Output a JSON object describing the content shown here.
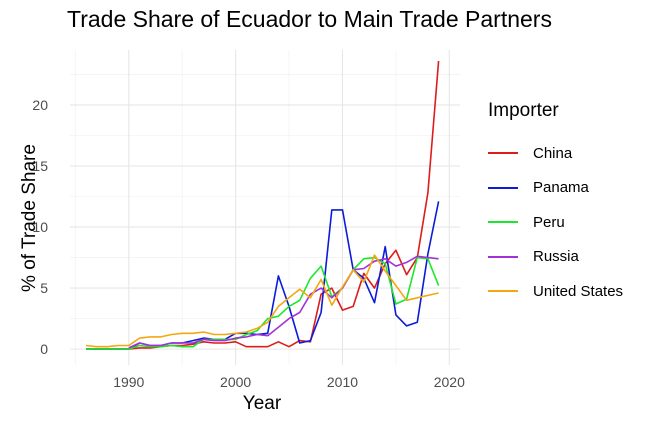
{
  "chart_data": {
    "type": "line",
    "title": "Trade Share of Ecuador to Main Trade Partners",
    "xlabel": "Year",
    "ylabel": "% of Trade Share",
    "xlim": [
      1984.5,
      2021
    ],
    "ylim": [
      -1.3,
      24.5
    ],
    "xticks": [
      1990,
      2000,
      2010,
      2020
    ],
    "yticks": [
      0,
      5,
      10,
      15,
      20
    ],
    "grid": true,
    "legend": {
      "title": "Importer",
      "position": "right"
    },
    "series": [
      {
        "name": "China",
        "color": "#dd1c1c",
        "x": [
          1986,
          1987,
          1988,
          1989,
          1990,
          1991,
          1992,
          1993,
          1994,
          1995,
          1996,
          1997,
          1998,
          1999,
          2000,
          2001,
          2002,
          2003,
          2004,
          2005,
          2006,
          2007,
          2008,
          2009,
          2010,
          2011,
          2012,
          2013,
          2014,
          2015,
          2016,
          2017,
          2018,
          2019
        ],
        "y": [
          0,
          0,
          0,
          0,
          0,
          0.1,
          0.1,
          0.2,
          0.3,
          0.3,
          0.4,
          0.6,
          0.5,
          0.5,
          0.6,
          0.2,
          0.2,
          0.2,
          0.6,
          0.2,
          0.7,
          0.6,
          4.5,
          5.0,
          3.2,
          3.5,
          6.2,
          5.0,
          7.0,
          8.1,
          6.1,
          7.5,
          12.8,
          23.6
        ]
      },
      {
        "name": "Panama",
        "color": "#0a1cd8",
        "x": [
          1986,
          1987,
          1988,
          1989,
          1990,
          1991,
          1992,
          1993,
          1994,
          1995,
          1996,
          1997,
          1998,
          1999,
          2000,
          2001,
          2002,
          2003,
          2004,
          2005,
          2006,
          2007,
          2008,
          2009,
          2010,
          2011,
          2012,
          2013,
          2014,
          2015,
          2016,
          2017,
          2018,
          2019
        ],
        "y": [
          0,
          0,
          0,
          0,
          0,
          0.5,
          0.3,
          0.3,
          0.5,
          0.5,
          0.7,
          0.9,
          0.8,
          0.8,
          1.3,
          1.3,
          1.2,
          1.3,
          6.0,
          3.5,
          0.5,
          0.7,
          3.0,
          11.4,
          11.4,
          6.5,
          5.8,
          3.8,
          8.4,
          2.8,
          1.9,
          2.2,
          7.8,
          12.1
        ]
      },
      {
        "name": "Peru",
        "color": "#1ee62c",
        "x": [
          1986,
          1987,
          1988,
          1989,
          1990,
          1991,
          1992,
          1993,
          1994,
          1995,
          1996,
          1997,
          1998,
          1999,
          2000,
          2001,
          2002,
          2003,
          2004,
          2005,
          2006,
          2007,
          2008,
          2009,
          2010,
          2011,
          2012,
          2013,
          2014,
          2015,
          2016,
          2017,
          2018,
          2019
        ],
        "y": [
          0,
          0,
          0,
          0,
          0,
          0.3,
          0.2,
          0.2,
          0.3,
          0.2,
          0.2,
          0.8,
          0.8,
          0.8,
          0.8,
          1.2,
          1.5,
          2.5,
          2.7,
          3.5,
          4.0,
          5.8,
          6.8,
          4.3,
          5.0,
          6.5,
          7.4,
          7.5,
          7.0,
          3.7,
          4.1,
          7.5,
          7.4,
          5.2
        ]
      },
      {
        "name": "Russia",
        "color": "#a232d8",
        "x": [
          1990,
          1991,
          1992,
          1993,
          1994,
          1995,
          1996,
          1997,
          1998,
          1999,
          2000,
          2001,
          2002,
          2003,
          2004,
          2005,
          2006,
          2007,
          2008,
          2009,
          2010,
          2011,
          2012,
          2013,
          2014,
          2015,
          2016,
          2017,
          2018,
          2019
        ],
        "y": [
          0.1,
          0.5,
          0.3,
          0.3,
          0.5,
          0.5,
          0.5,
          0.8,
          0.7,
          0.7,
          0.9,
          1.0,
          1.2,
          1.1,
          1.8,
          2.5,
          3.0,
          4.5,
          5.0,
          4.2,
          5.0,
          6.5,
          6.6,
          7.2,
          7.4,
          6.8,
          7.1,
          7.6,
          7.5,
          7.4
        ]
      },
      {
        "name": "United States",
        "color": "#f5a70f",
        "x": [
          1986,
          1987,
          1988,
          1989,
          1990,
          1991,
          1992,
          1993,
          1994,
          1995,
          1996,
          1997,
          1998,
          1999,
          2000,
          2001,
          2002,
          2003,
          2004,
          2005,
          2006,
          2007,
          2008,
          2009,
          2010,
          2011,
          2012,
          2013,
          2014,
          2015,
          2016,
          2017,
          2018,
          2019
        ],
        "y": [
          0.3,
          0.2,
          0.2,
          0.3,
          0.3,
          0.9,
          1.0,
          1.0,
          1.2,
          1.3,
          1.3,
          1.4,
          1.2,
          1.2,
          1.3,
          1.4,
          1.7,
          2.2,
          3.5,
          4.2,
          4.9,
          4.2,
          5.7,
          3.6,
          5.1,
          6.5,
          5.5,
          7.7,
          6.4,
          5.2,
          4.0,
          4.2,
          4.4,
          4.6
        ]
      }
    ]
  }
}
